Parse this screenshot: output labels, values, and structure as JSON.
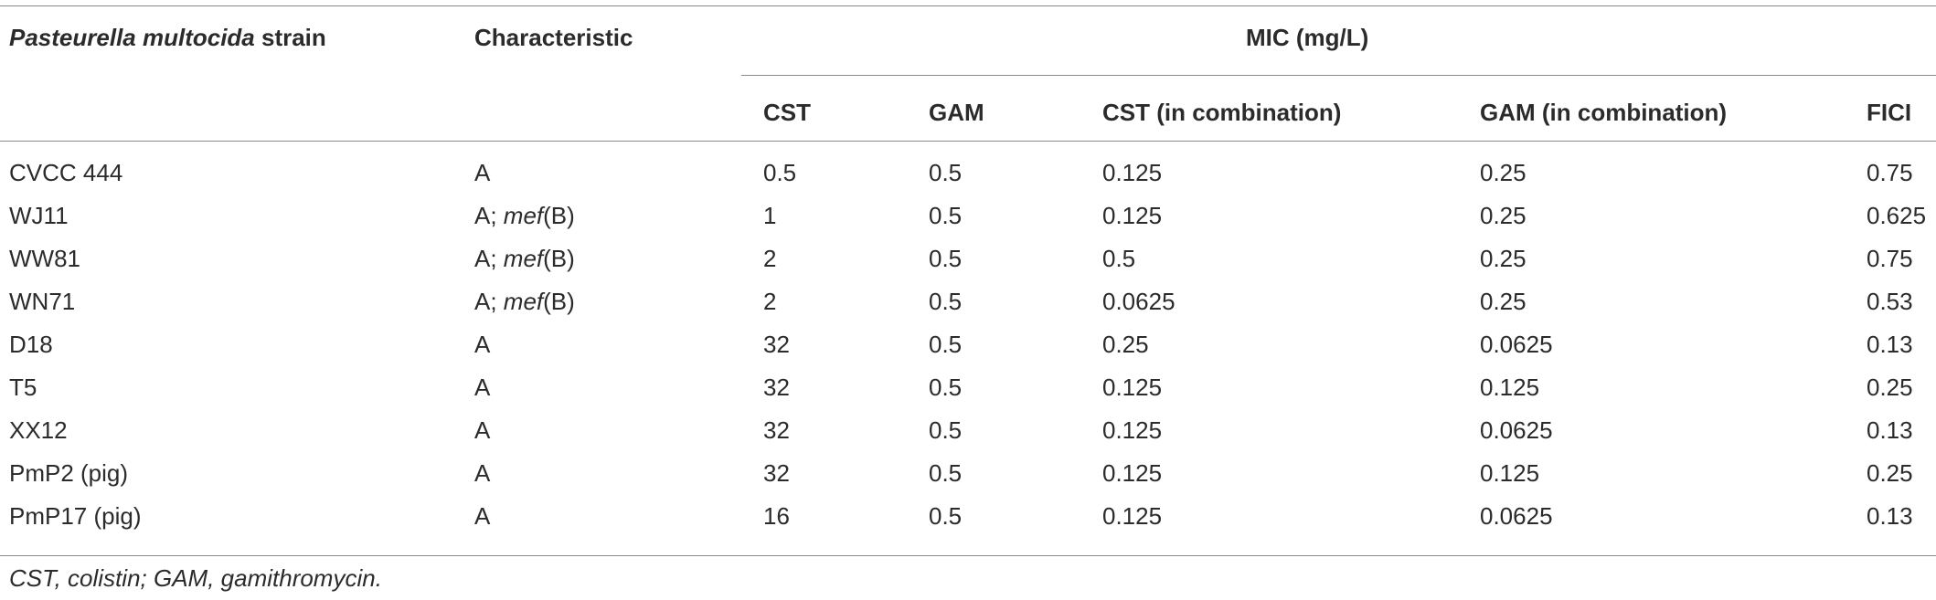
{
  "header": {
    "strain_prefix": "Pasteurella multocida",
    "strain_suffix": " strain",
    "characteristic": "Characteristic",
    "mic_group": "MIC (mg/L)",
    "columns": [
      "CST",
      "GAM",
      "CST (in combination)",
      "GAM (in combination)",
      "FICI"
    ]
  },
  "rows": [
    {
      "strain": "CVCC 444",
      "char_prefix": "A",
      "char_gene": "",
      "char_suffix": "",
      "cst": "0.5",
      "gam": "0.5",
      "cst_comb": "0.125",
      "gam_comb": "0.25",
      "fici": "0.75"
    },
    {
      "strain": "WJ11",
      "char_prefix": "A; ",
      "char_gene": "mef",
      "char_suffix": "(B)",
      "cst": "1",
      "gam": "0.5",
      "cst_comb": "0.125",
      "gam_comb": "0.25",
      "fici": "0.625"
    },
    {
      "strain": "WW81",
      "char_prefix": "A; ",
      "char_gene": "mef",
      "char_suffix": "(B)",
      "cst": "2",
      "gam": "0.5",
      "cst_comb": "0.5",
      "gam_comb": "0.25",
      "fici": "0.75"
    },
    {
      "strain": "WN71",
      "char_prefix": "A; ",
      "char_gene": "mef",
      "char_suffix": "(B)",
      "cst": "2",
      "gam": "0.5",
      "cst_comb": "0.0625",
      "gam_comb": "0.25",
      "fici": "0.53"
    },
    {
      "strain": "D18",
      "char_prefix": "A",
      "char_gene": "",
      "char_suffix": "",
      "cst": "32",
      "gam": "0.5",
      "cst_comb": "0.25",
      "gam_comb": "0.0625",
      "fici": "0.13"
    },
    {
      "strain": "T5",
      "char_prefix": "A",
      "char_gene": "",
      "char_suffix": "",
      "cst": "32",
      "gam": "0.5",
      "cst_comb": "0.125",
      "gam_comb": "0.125",
      "fici": "0.25"
    },
    {
      "strain": "XX12",
      "char_prefix": "A",
      "char_gene": "",
      "char_suffix": "",
      "cst": "32",
      "gam": "0.5",
      "cst_comb": "0.125",
      "gam_comb": "0.0625",
      "fici": "0.13"
    },
    {
      "strain": "PmP2 (pig)",
      "char_prefix": "A",
      "char_gene": "",
      "char_suffix": "",
      "cst": "32",
      "gam": "0.5",
      "cst_comb": "0.125",
      "gam_comb": "0.125",
      "fici": "0.25"
    },
    {
      "strain": "PmP17 (pig)",
      "char_prefix": "A",
      "char_gene": "",
      "char_suffix": "",
      "cst": "16",
      "gam": "0.5",
      "cst_comb": "0.125",
      "gam_comb": "0.0625",
      "fici": "0.13"
    }
  ],
  "footnote": "CST, colistin; GAM, gamithromycin."
}
